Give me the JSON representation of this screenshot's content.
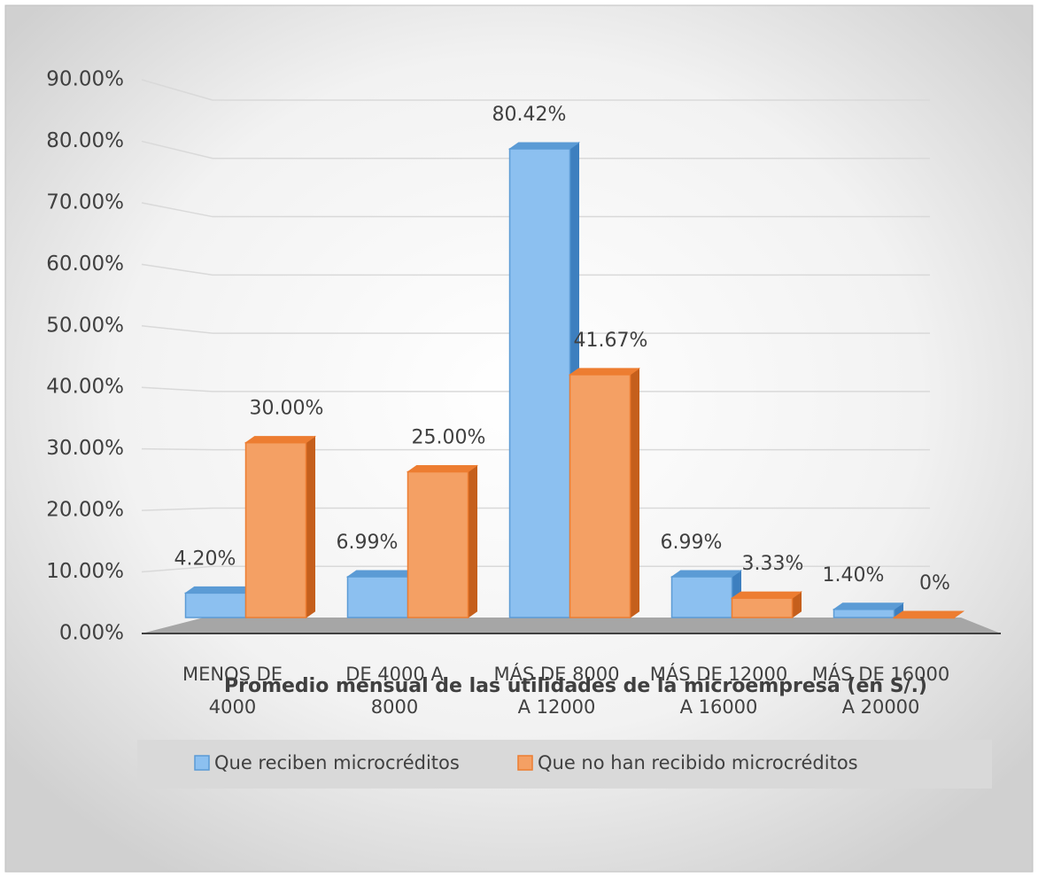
{
  "chart_data": {
    "type": "bar3d",
    "xlabel": "Promedio mensual de las utilidades de la microempresa (en S/.)",
    "categories": [
      [
        "MENOS DE",
        "4000"
      ],
      [
        "DE 4000 A",
        "8000"
      ],
      [
        "MÁS DE 8000",
        "A 12000"
      ],
      [
        "MÁS DE 12000",
        "A 16000"
      ],
      [
        "MÁS DE 16000",
        "A 20000"
      ]
    ],
    "series": [
      {
        "name": "Que reciben microcréditos",
        "color": "#5b9bd5",
        "values": [
          4.2,
          6.99,
          80.42,
          6.99,
          1.4
        ],
        "value_labels": [
          "4.20%",
          "6.99%",
          "80.42%",
          "6.99%",
          "1.40%"
        ]
      },
      {
        "name": "Que no han recibido microcréditos",
        "color": "#ed7d31",
        "values": [
          30.0,
          25.0,
          41.67,
          3.33,
          0
        ],
        "value_labels": [
          "30.00%",
          "25.00%",
          "41.67%",
          "3.33%",
          "0%"
        ]
      }
    ],
    "ylim": [
      0,
      90
    ],
    "yticks": [
      {
        "value": 0,
        "label": "0.00%"
      },
      {
        "value": 10,
        "label": "10.00%"
      },
      {
        "value": 20,
        "label": "20.00%"
      },
      {
        "value": 30,
        "label": "30.00%"
      },
      {
        "value": 40,
        "label": "40.00%"
      },
      {
        "value": 50,
        "label": "50.00%"
      },
      {
        "value": 60,
        "label": "60.00%"
      },
      {
        "value": 70,
        "label": "70.00%"
      },
      {
        "value": 80,
        "label": "80.00%"
      },
      {
        "value": 90,
        "label": "90.00%"
      }
    ],
    "grid": true
  }
}
